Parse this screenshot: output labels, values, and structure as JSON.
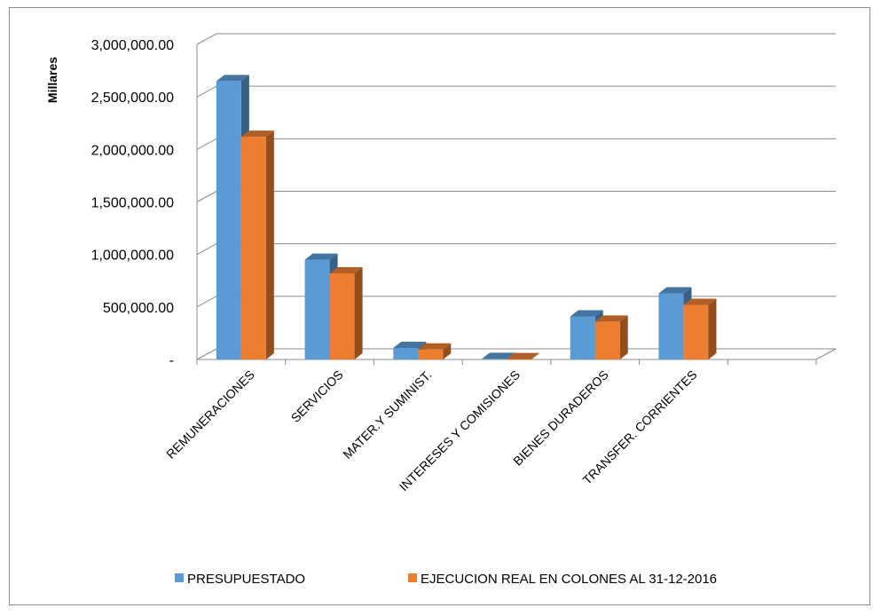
{
  "chart_data": {
    "type": "bar",
    "ylabel": "Millares",
    "ylim": [
      0,
      3000000
    ],
    "yticks": [
      0,
      500000,
      1000000,
      1500000,
      2000000,
      2500000,
      3000000
    ],
    "ytick_labels": [
      "-",
      "500,000.00",
      "1,000,000.00",
      "1,500,000.00",
      "2,000,000.00",
      "2,500,000.00",
      "3,000,000.00"
    ],
    "grid": true,
    "legend_position": "bottom",
    "categories": [
      "REMUNERACIONES",
      "SERVICIOS",
      "MATER.Y SUMINIST.",
      "INTERESES  Y COMISIONES",
      "BIENES DURADEROS",
      "TRANSFER. CORRIENTES"
    ],
    "series": [
      {
        "name": "PRESUPUESTADO",
        "color": "#5b9bd5",
        "values": [
          2650000,
          950000,
          110000,
          5000,
          410000,
          630000
        ]
      },
      {
        "name": "EJECUCION REAL EN COLONES AL 31-12-2016",
        "color": "#ed7d31",
        "values": [
          2120000,
          820000,
          95000,
          3000,
          360000,
          520000
        ]
      }
    ]
  }
}
